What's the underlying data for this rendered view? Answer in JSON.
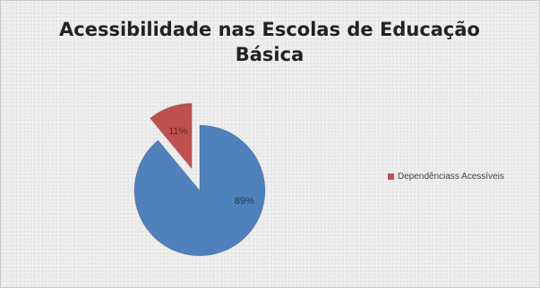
{
  "chart_data": {
    "type": "pie",
    "title_lines": [
      "Acessibilidade nas Escolas de Educação",
      "Básica"
    ],
    "slices": [
      {
        "value": 89,
        "label": "89%",
        "color": "#4f81bd",
        "exploded": false
      },
      {
        "value": 11,
        "label": "11%",
        "color": "#c0504d",
        "exploded": true
      }
    ],
    "legend": [
      {
        "name": "Dependênciass Acessíveis",
        "color": "#c0504d"
      }
    ],
    "legend_position": "right"
  }
}
